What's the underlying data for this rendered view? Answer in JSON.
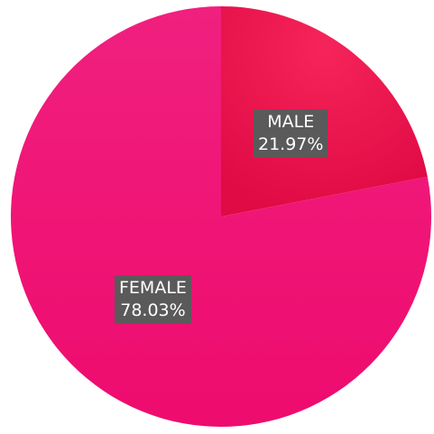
{
  "chart_data": {
    "type": "pie",
    "slices": [
      {
        "label": "MALE",
        "value": 21.97,
        "display_value": "21.97%",
        "color": "#ee1150",
        "color_dark": "#e60c45"
      },
      {
        "label": "FEMALE",
        "value": 78.03,
        "display_value": "78.03%",
        "color": "#f2197e",
        "color_dark": "#ea0a6d"
      }
    ],
    "start_angle_deg": 0,
    "direction": "clockwise"
  }
}
